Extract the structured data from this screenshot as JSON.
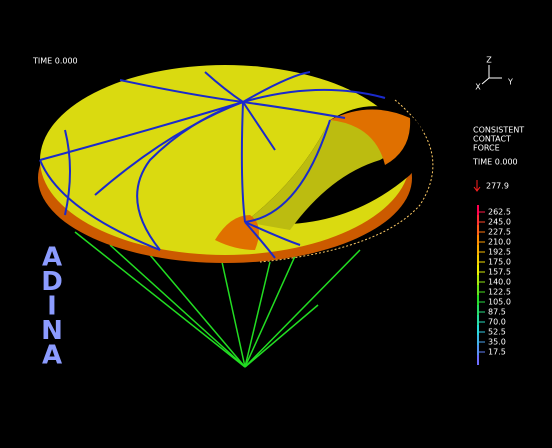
{
  "header": {
    "time": "TIME 0.000"
  },
  "triad": {
    "z": "Z",
    "y": "Y",
    "x": "X"
  },
  "legend": {
    "title": [
      "CONSISTENT",
      "CONTACT",
      "FORCE"
    ],
    "time": "TIME 0.000",
    "max": "277.9",
    "levels": [
      "262.5",
      "245.0",
      "227.5",
      "210.0",
      "192.5",
      "175.0",
      "157.5",
      "140.0",
      "122.5",
      "105.0",
      "87.5",
      "70.0",
      "52.5",
      "35.0",
      "17.5"
    ]
  },
  "logo": [
    "A",
    "D",
    "I",
    "N",
    "A"
  ]
}
